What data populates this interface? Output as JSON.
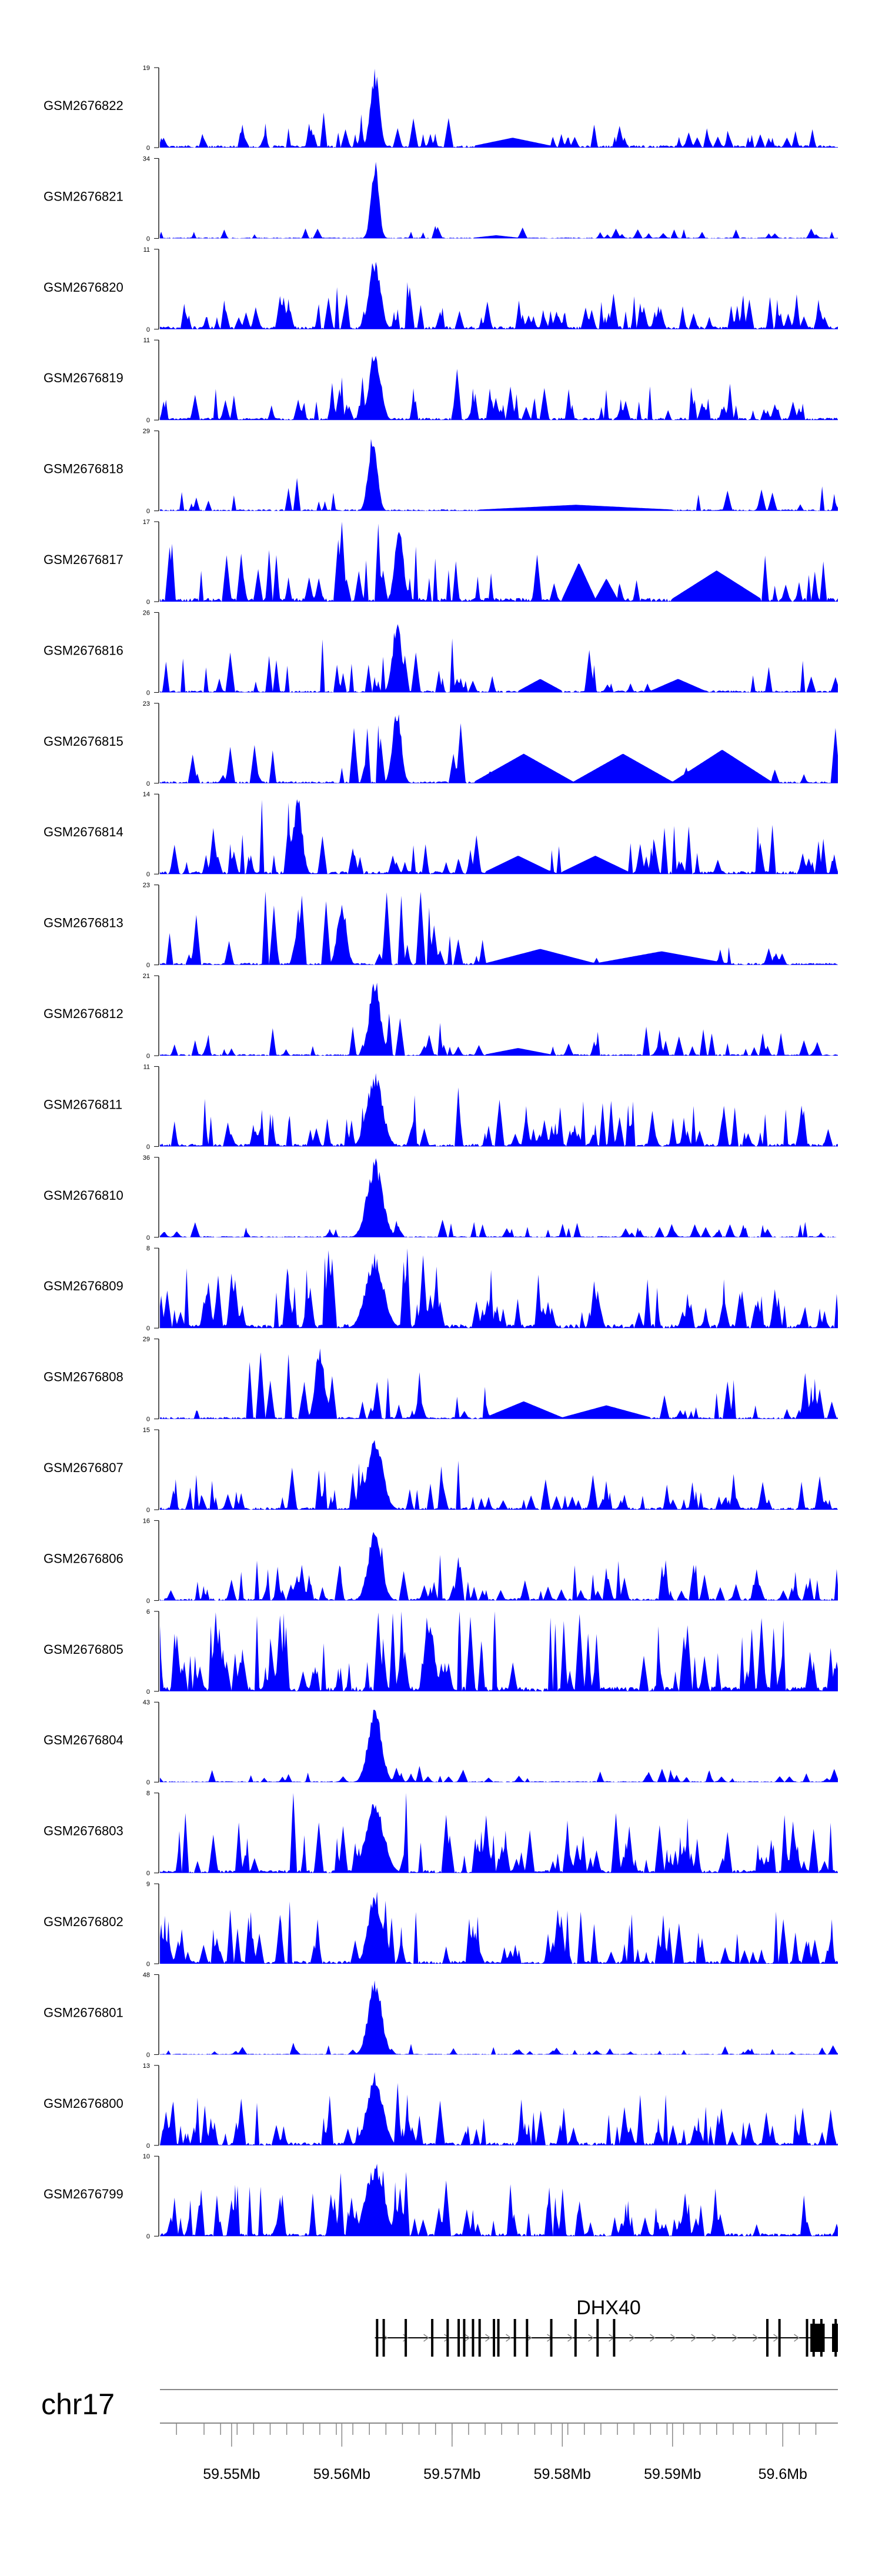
{
  "chart_data": {
    "type": "area",
    "title": "",
    "xlabel": "",
    "ylabel": "",
    "chromosome": "chr17",
    "xlim_mb": [
      59.5435,
      59.605
    ],
    "gene": {
      "name": "DHX40",
      "start_mb": 59.563,
      "end_mb": 59.605,
      "strand": "+",
      "exons_mb": [
        59.5632,
        59.5638,
        59.5658,
        59.5682,
        59.5696,
        59.5706,
        59.5711,
        59.5719,
        59.5725,
        59.5738,
        59.5742,
        59.5757,
        59.5768,
        59.579,
        59.5812,
        59.5832,
        59.5847,
        59.5986,
        59.5997,
        59.6022,
        59.6028,
        59.6035,
        59.6048
      ],
      "utr_block_mb": [
        59.6025,
        59.6038
      ]
    },
    "ruler": {
      "ticks_mb": [
        59.545,
        59.5475,
        59.549,
        59.5505,
        59.552,
        59.5535,
        59.555,
        59.5565,
        59.558,
        59.5595,
        59.561,
        59.5625,
        59.564,
        59.5655,
        59.567,
        59.5685,
        59.57,
        59.5715,
        59.573,
        59.5745,
        59.576,
        59.5775,
        59.579,
        59.5805,
        59.582,
        59.5835,
        59.585,
        59.5865,
        59.588,
        59.5895,
        59.591,
        59.5925,
        59.594,
        59.5955,
        59.597,
        59.5985,
        59.6,
        59.6015,
        59.603
      ],
      "major_ticks_mb": [
        59.55,
        59.56,
        59.57,
        59.58,
        59.59,
        59.6
      ],
      "labels": [
        "59.55Mb",
        "59.56Mb",
        "59.57Mb",
        "59.58Mb",
        "59.59Mb",
        "59.6Mb"
      ]
    },
    "series": [
      {
        "name": "GSM2676822",
        "ymax": 19,
        "baseline": 0.12,
        "peak_mb": 59.563,
        "peak_height": 1.0,
        "peak_width": 0.0004,
        "density": 0.22,
        "noise": 0.2,
        "bridges": [
          [
            59.572,
            59.579,
            0.1
          ]
        ],
        "seed": 22
      },
      {
        "name": "GSM2676821",
        "ymax": 34,
        "baseline": 0.05,
        "peak_mb": 59.563,
        "peak_height": 1.0,
        "peak_width": 0.00035,
        "density": 0.12,
        "noise": 0.1,
        "bridges": [
          [
            59.572,
            59.576,
            0.03
          ]
        ],
        "seed": 21
      },
      {
        "name": "GSM2676820",
        "ymax": 11,
        "baseline": 0.15,
        "peak_mb": 59.563,
        "peak_height": 0.95,
        "peak_width": 0.0005,
        "density": 0.35,
        "noise": 0.3,
        "bridges": [],
        "seed": 20
      },
      {
        "name": "GSM2676819",
        "ymax": 11,
        "baseline": 0.12,
        "peak_mb": 59.563,
        "peak_height": 0.95,
        "peak_width": 0.0005,
        "density": 0.3,
        "noise": 0.35,
        "bridges": [],
        "seed": 19
      },
      {
        "name": "GSM2676818",
        "ymax": 29,
        "baseline": 0.08,
        "peak_mb": 59.5628,
        "peak_height": 1.0,
        "peak_width": 0.0004,
        "density": 0.14,
        "noise": 0.25,
        "bridges": [
          [
            59.5725,
            59.59,
            0.06
          ]
        ],
        "seed": 18
      },
      {
        "name": "GSM2676817",
        "ymax": 17,
        "baseline": 0.2,
        "peak_mb": 59.5652,
        "peak_height": 0.95,
        "peak_width": 0.0004,
        "density": 0.2,
        "noise": 0.55,
        "bridges": [
          [
            59.58,
            59.583,
            0.45
          ],
          [
            59.583,
            59.585,
            0.25
          ],
          [
            59.59,
            59.598,
            0.35
          ]
        ],
        "seed": 17
      },
      {
        "name": "GSM2676816",
        "ymax": 26,
        "baseline": 0.1,
        "peak_mb": 59.565,
        "peak_height": 0.95,
        "peak_width": 0.0004,
        "density": 0.18,
        "noise": 0.45,
        "bridges": [
          [
            59.576,
            59.58,
            0.15
          ],
          [
            59.588,
            59.593,
            0.15
          ]
        ],
        "seed": 16
      },
      {
        "name": "GSM2676815",
        "ymax": 23,
        "baseline": 0.1,
        "peak_mb": 59.565,
        "peak_height": 0.95,
        "peak_width": 0.0004,
        "density": 0.15,
        "noise": 0.6,
        "bridges": [
          [
            59.572,
            59.581,
            0.35
          ],
          [
            59.581,
            59.59,
            0.35
          ],
          [
            59.59,
            59.599,
            0.4
          ]
        ],
        "seed": 15
      },
      {
        "name": "GSM2676814",
        "ymax": 14,
        "baseline": 0.15,
        "peak_mb": 59.556,
        "peak_height": 1.0,
        "peak_width": 0.0004,
        "density": 0.25,
        "noise": 0.55,
        "bridges": [
          [
            59.573,
            59.579,
            0.2
          ],
          [
            59.58,
            59.586,
            0.2
          ]
        ],
        "seed": 14
      },
      {
        "name": "GSM2676813",
        "ymax": 23,
        "baseline": 0.1,
        "peak_mb": 59.56,
        "peak_height": 0.85,
        "peak_width": 0.0004,
        "density": 0.22,
        "noise": 0.6,
        "bridges": [
          [
            59.573,
            59.583,
            0.18
          ],
          [
            59.583,
            59.595,
            0.15
          ]
        ],
        "seed": 13
      },
      {
        "name": "GSM2676812",
        "ymax": 21,
        "baseline": 0.08,
        "peak_mb": 59.563,
        "peak_height": 1.0,
        "peak_width": 0.0005,
        "density": 0.18,
        "noise": 0.3,
        "bridges": [
          [
            59.573,
            59.579,
            0.08
          ]
        ],
        "seed": 12
      },
      {
        "name": "GSM2676811",
        "ymax": 11,
        "baseline": 0.15,
        "peak_mb": 59.563,
        "peak_height": 0.95,
        "peak_width": 0.0007,
        "density": 0.35,
        "noise": 0.45,
        "bridges": [],
        "seed": 11
      },
      {
        "name": "GSM2676810",
        "ymax": 36,
        "baseline": 0.06,
        "peak_mb": 59.563,
        "peak_height": 1.0,
        "peak_width": 0.0007,
        "density": 0.2,
        "noise": 0.15,
        "bridges": [],
        "seed": 10
      },
      {
        "name": "GSM2676809",
        "ymax": 8,
        "baseline": 0.2,
        "peak_mb": 59.563,
        "peak_height": 0.95,
        "peak_width": 0.0008,
        "density": 0.35,
        "noise": 0.55,
        "bridges": [],
        "seed": 9
      },
      {
        "name": "GSM2676808",
        "ymax": 29,
        "baseline": 0.1,
        "peak_mb": 59.558,
        "peak_height": 0.95,
        "peak_width": 0.0004,
        "density": 0.2,
        "noise": 0.55,
        "bridges": [
          [
            59.573,
            59.58,
            0.2
          ],
          [
            59.58,
            59.588,
            0.15
          ]
        ],
        "seed": 8
      },
      {
        "name": "GSM2676807",
        "ymax": 15,
        "baseline": 0.12,
        "peak_mb": 59.563,
        "peak_height": 0.95,
        "peak_width": 0.0007,
        "density": 0.3,
        "noise": 0.35,
        "bridges": [],
        "seed": 7
      },
      {
        "name": "GSM2676806",
        "ymax": 16,
        "baseline": 0.12,
        "peak_mb": 59.563,
        "peak_height": 0.95,
        "peak_width": 0.0006,
        "density": 0.28,
        "noise": 0.4,
        "bridges": [],
        "seed": 6
      },
      {
        "name": "GSM2676805",
        "ymax": 6,
        "baseline": 0.25,
        "peak_mb": 59.568,
        "peak_height": 0.95,
        "peak_width": 0.0004,
        "density": 0.4,
        "noise": 0.75,
        "bridges": [],
        "seed": 5
      },
      {
        "name": "GSM2676804",
        "ymax": 43,
        "baseline": 0.05,
        "peak_mb": 59.563,
        "peak_height": 1.0,
        "peak_width": 0.0006,
        "density": 0.18,
        "noise": 0.12,
        "bridges": [],
        "seed": 4
      },
      {
        "name": "GSM2676803",
        "ymax": 8,
        "baseline": 0.15,
        "peak_mb": 59.563,
        "peak_height": 0.95,
        "peak_width": 0.0008,
        "density": 0.35,
        "noise": 0.6,
        "bridges": [],
        "seed": 3
      },
      {
        "name": "GSM2676802",
        "ymax": 9,
        "baseline": 0.15,
        "peak_mb": 59.563,
        "peak_height": 0.95,
        "peak_width": 0.0006,
        "density": 0.33,
        "noise": 0.55,
        "bridges": [],
        "seed": 2
      },
      {
        "name": "GSM2676801",
        "ymax": 48,
        "baseline": 0.04,
        "peak_mb": 59.563,
        "peak_height": 1.0,
        "peak_width": 0.0006,
        "density": 0.15,
        "noise": 0.08,
        "bridges": [],
        "seed": 1
      },
      {
        "name": "GSM2676800",
        "ymax": 13,
        "baseline": 0.15,
        "peak_mb": 59.563,
        "peak_height": 0.95,
        "peak_width": 0.0007,
        "density": 0.32,
        "noise": 0.5,
        "bridges": [],
        "seed": 30
      },
      {
        "name": "GSM2676799",
        "ymax": 10,
        "baseline": 0.15,
        "peak_mb": 59.563,
        "peak_height": 0.95,
        "peak_width": 0.0008,
        "density": 0.32,
        "noise": 0.5,
        "bridges": [],
        "seed": 31
      }
    ]
  },
  "colors": {
    "fill": "#0000ff",
    "axis": "#000000",
    "ruler": "#888888",
    "gene": "#000000"
  }
}
